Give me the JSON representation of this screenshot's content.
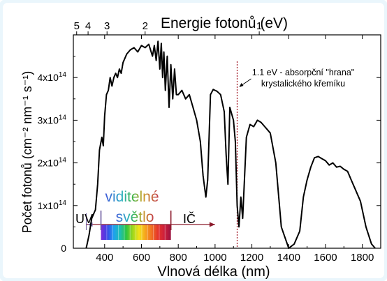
{
  "chart_data": {
    "type": "line",
    "title": "",
    "xlabel": "Vlnová délka (nm)",
    "ylabel": "Počet fotonů (cm⁻² nm⁻¹ s⁻¹)",
    "top_axis_label": "Energie fotonů (eV)",
    "xlim": [
      230,
      1900
    ],
    "ylim": [
      0,
      500000000000000.0
    ],
    "x_ticks": [
      400,
      600,
      800,
      1000,
      1200,
      1400,
      1600,
      1800
    ],
    "x_tick_labels": [
      "400",
      "600",
      "800",
      "1000",
      "1200",
      "1400",
      "1600",
      "1800"
    ],
    "y_ticks": [
      0,
      100000000000000.0,
      200000000000000.0,
      300000000000000.0,
      400000000000000.0
    ],
    "y_tick_labels": [
      {
        "mantissa": "0",
        "exp": ""
      },
      {
        "mantissa": "1x10",
        "exp": "14"
      },
      {
        "mantissa": "2x10",
        "exp": "14"
      },
      {
        "mantissa": "3x10",
        "exp": "14"
      },
      {
        "mantissa": "4x10",
        "exp": "14"
      }
    ],
    "top_ticks": [
      {
        "label": "5",
        "wavelength_nm": 248
      },
      {
        "label": "4",
        "wavelength_nm": 310
      },
      {
        "label": "3",
        "wavelength_nm": 413
      },
      {
        "label": "2",
        "wavelength_nm": 620
      },
      {
        "label": "1",
        "wavelength_nm": 1240
      }
    ],
    "series": [
      {
        "x": [
          300,
          315,
          330,
          350,
          362,
          372,
          385,
          393,
          400,
          410,
          420,
          430,
          440,
          450,
          460,
          470,
          480,
          490,
          500,
          520,
          540,
          560,
          580,
          600,
          620,
          640,
          660,
          670,
          680,
          690,
          700,
          708,
          715,
          722,
          730,
          740,
          750,
          760,
          770,
          780,
          790,
          800,
          820,
          840,
          860,
          880,
          900,
          920,
          935,
          950,
          960,
          975,
          990,
          1000,
          1010,
          1030,
          1050,
          1060,
          1070,
          1080,
          1100,
          1110,
          1120,
          1130,
          1140,
          1150,
          1170,
          1190,
          1210,
          1230,
          1250,
          1270,
          1300,
          1330,
          1360,
          1400,
          1430,
          1460,
          1480,
          1500,
          1520,
          1540,
          1560,
          1580,
          1600,
          1620,
          1640,
          1660,
          1680,
          1700,
          1720,
          1740,
          1760,
          1790,
          1820,
          1850,
          1870
        ],
        "values": [
          0,
          30000000000000.0,
          70000000000000.0,
          90000000000000.0,
          150000000000000.0,
          230000000000000.0,
          260000000000000.0,
          240000000000000.0,
          310000000000000.0,
          360000000000000.0,
          370000000000000.0,
          400000000000000.0,
          380000000000000.0,
          400000000000000.0,
          410000000000000.0,
          400000000000000.0,
          420000000000000.0,
          410000000000000.0,
          435000000000000.0,
          455000000000000.0,
          465000000000000.0,
          470000000000000.0,
          460000000000000.0,
          475000000000000.0,
          470000000000000.0,
          478000000000000.0,
          450000000000000.0,
          475000000000000.0,
          440000000000000.0,
          485000000000000.0,
          420000000000000.0,
          480000000000000.0,
          400000000000000.0,
          460000000000000.0,
          370000000000000.0,
          450000000000000.0,
          330000000000000.0,
          430000000000000.0,
          350000000000000.0,
          420000000000000.0,
          360000000000000.0,
          360000000000000.0,
          370000000000000.0,
          350000000000000.0,
          360000000000000.0,
          330000000000000.0,
          300000000000000.0,
          250000000000000.0,
          170000000000000.0,
          120000000000000.0,
          160000000000000.0,
          360000000000000.0,
          372000000000000.0,
          370000000000000.0,
          368000000000000.0,
          360000000000000.0,
          320000000000000.0,
          220000000000000.0,
          150000000000000.0,
          330000000000000.0,
          300000000000000.0,
          250000000000000.0,
          100000000000000.0,
          50000000000000.0,
          120000000000000.0,
          70000000000000.0,
          260000000000000.0,
          290000000000000.0,
          285000000000000.0,
          300000000000000.0,
          295000000000000.0,
          285000000000000.0,
          270000000000000.0,
          200000000000000.0,
          50000000000000.0,
          0,
          10000000000000.0,
          40000000000000.0,
          120000000000000.0,
          160000000000000.0,
          190000000000000.0,
          212000000000000.0,
          215000000000000.0,
          210000000000000.0,
          205000000000000.0,
          195000000000000.0,
          200000000000000.0,
          190000000000000.0,
          192000000000000.0,
          185000000000000.0,
          180000000000000.0,
          160000000000000.0,
          140000000000000.0,
          110000000000000.0,
          50000000000000.0,
          10000000000000.0,
          0
        ]
      }
    ],
    "annotation_wavelength_nm": 1120,
    "annotation_lines": [
      "1.1 eV - absorpční \"hrana\"",
      "krystalického křemíku"
    ],
    "regions": {
      "uv": "UV",
      "visible_line1": "viditelné",
      "visible_line2": "světlo",
      "ir": "IČ"
    },
    "spectrum_colors": [
      "#7d2bd9",
      "#3a46e6",
      "#1ea0ef",
      "#1ebfb2",
      "#2fc43f",
      "#9fd81d",
      "#f2e21a",
      "#f6a31e",
      "#ef6f24",
      "#e5322b",
      "#cc1f3d",
      "#9a1240"
    ],
    "colors": {
      "line": "#000000",
      "accent": "#8b1a2b",
      "annotation_line": "#a01020",
      "frame_edge": "#e6f4fb"
    }
  }
}
